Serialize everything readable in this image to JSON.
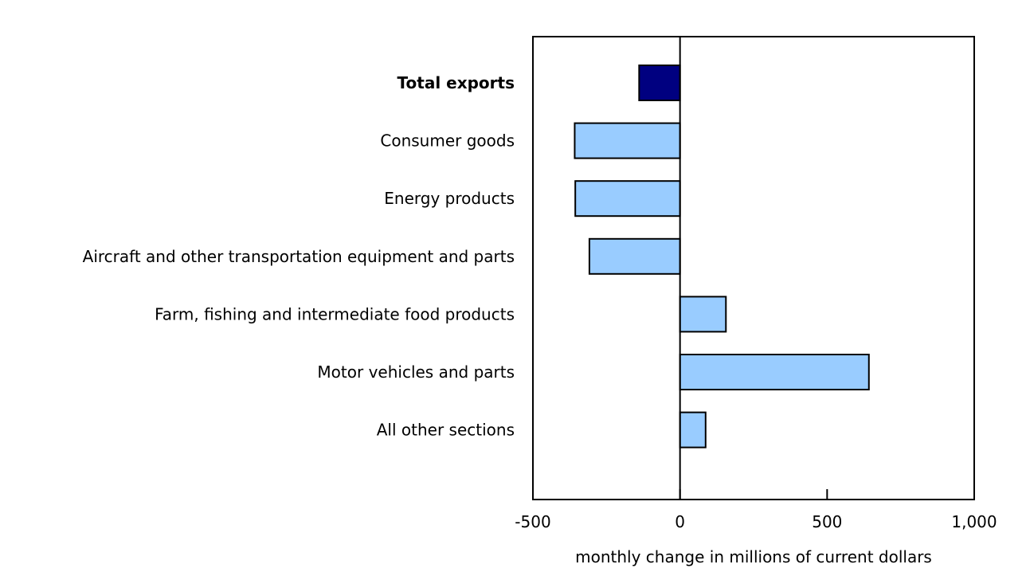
{
  "chart_data": {
    "type": "bar",
    "orientation": "horizontal",
    "categories": [
      "Total exports",
      "Consumer goods",
      "Energy products",
      "Aircraft and other transportation equipment and parts",
      "Farm, fishing and intermediate food products",
      "Motor vehicles and parts",
      "All other sections"
    ],
    "values": [
      -139,
      -358,
      -356,
      -308,
      156,
      642,
      87
    ],
    "highlight_category": "Total exports",
    "colors": {
      "highlight": "#000080",
      "default": "#99ccff",
      "border": "#000000"
    },
    "xlabel": "monthly change in millions of current dollars",
    "ylabel": "",
    "xlim": [
      -500,
      1000
    ],
    "xticks": [
      -500,
      0,
      500,
      1000
    ],
    "xtick_labels": [
      "-500",
      "0",
      "500",
      "1,000"
    ],
    "grid": false,
    "legend": "none"
  }
}
